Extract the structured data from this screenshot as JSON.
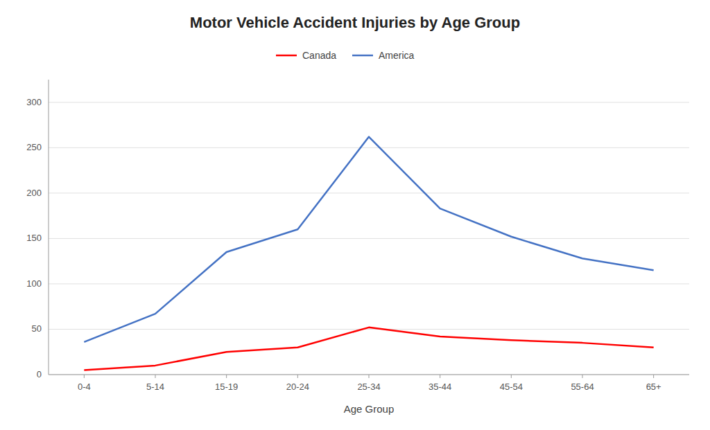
{
  "chart_data": {
    "type": "line",
    "title": "Motor Vehicle Accident Injuries by Age Group",
    "x_label": "Age Group",
    "categories": [
      "0-4",
      "5-14",
      "15-19",
      "20-24",
      "25-34",
      "35-44",
      "45-54",
      "55-64",
      "65+"
    ],
    "series": [
      {
        "name": "Canada",
        "color": "#FF0000",
        "values": [
          5,
          10,
          25,
          30,
          52,
          42,
          38,
          35,
          30
        ]
      },
      {
        "name": "America",
        "color": "#4472C4",
        "values": [
          36,
          67,
          135,
          160,
          262,
          183,
          152,
          128,
          115
        ]
      }
    ],
    "ylim": [
      0,
      325
    ],
    "yticks": [
      0,
      50,
      100,
      150,
      200,
      250,
      300
    ],
    "grid": true,
    "legend": "top"
  }
}
